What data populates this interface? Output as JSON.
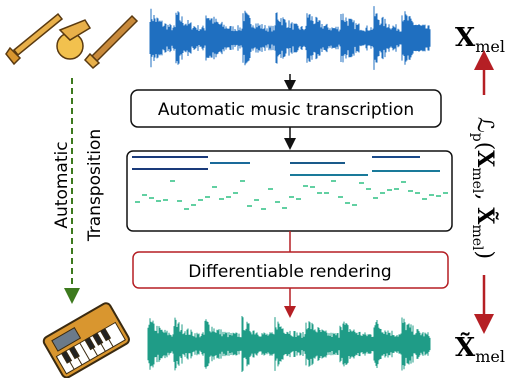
{
  "top_label": {
    "base": "X",
    "sub": "mel"
  },
  "bottom_label": {
    "base": "X̃",
    "sub": "mel"
  },
  "boxes": [
    "Automatic music transcription",
    "Differentiable rendering"
  ],
  "side_label": [
    "Automatic",
    "Transposition"
  ],
  "loss": {
    "symbol": "ℒ",
    "sub": "p",
    "open": "(",
    "a": "X",
    "a_sub": "mel",
    "sep": ", ",
    "b": "X̃",
    "b_sub": "mel",
    "close": ")"
  }
}
